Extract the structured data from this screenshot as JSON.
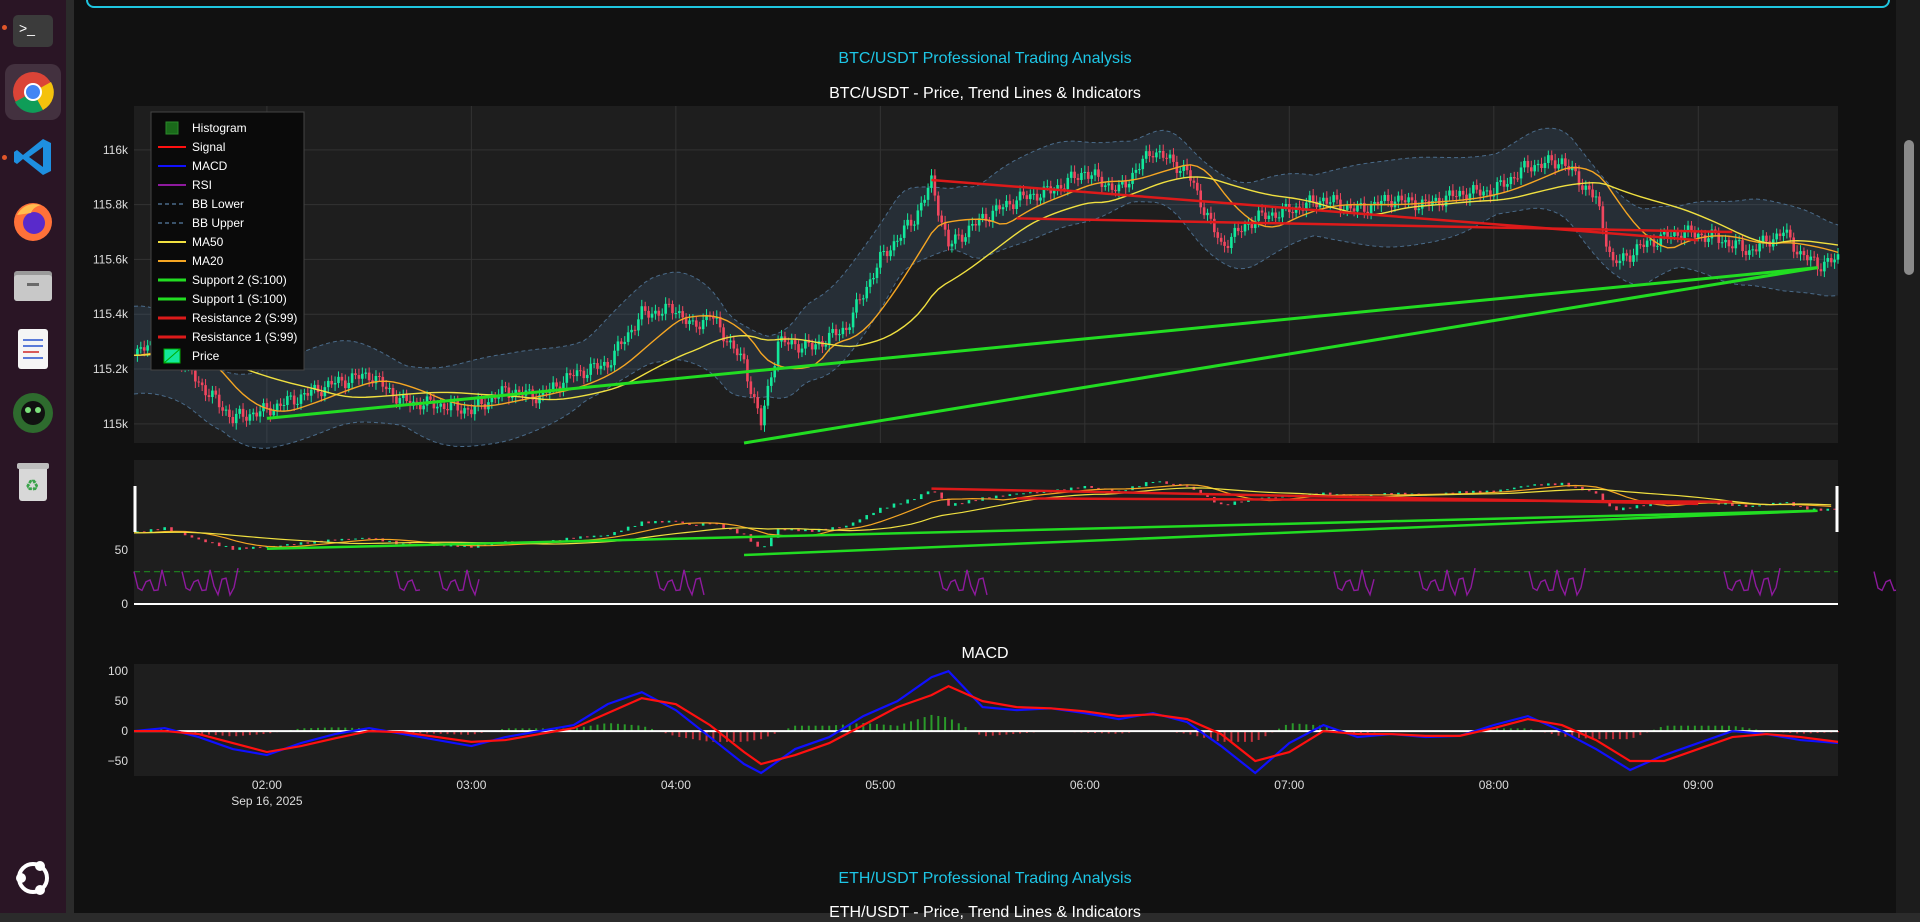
{
  "dock": {
    "items": [
      "terminal-icon",
      "chrome-icon",
      "vscode-icon",
      "firefox-icon",
      "files-icon",
      "text-editor-icon",
      "game-icon",
      "trash-icon",
      "apps-grid-icon"
    ]
  },
  "page": {
    "btc_section_title": "BTC/USDT Professional Trading Analysis",
    "btc_chart_title": "BTC/USDT - Price, Trend Lines & Indicators",
    "macd_title": "MACD",
    "eth_section_title": "ETH/USDT Professional Trading Analysis",
    "eth_chart_title": "ETH/USDT - Price, Trend Lines & Indicators"
  },
  "colors": {
    "accent": "#1ec6e6",
    "up": "#13e89b",
    "down": "#f0465e",
    "support": "#22dd22",
    "resistance": "#dd1a1a",
    "ma20": "#f5a623",
    "ma50": "#f0e040",
    "macd": "#1010ff",
    "signal": "#ff1010",
    "rsi": "#8e1a9e"
  },
  "chart_data": [
    {
      "type": "candlestick",
      "title": "BTC/USDT - Price, Trend Lines & Indicators",
      "y_ticks": [
        "116k",
        "115.8k",
        "115.6k",
        "115.4k",
        "115.2k",
        "115k"
      ],
      "ylim": [
        114.93,
        116.16
      ],
      "x_ticks": [
        "02:00",
        "03:00",
        "04:00",
        "05:00",
        "06:00",
        "07:00",
        "08:00",
        "09:00"
      ],
      "x_date_label": "Sep 16, 2025",
      "xlim": [
        "01:21",
        "09:41"
      ],
      "legend": [
        "Histogram",
        "Signal",
        "MACD",
        "RSI",
        "BB Lower",
        "BB Upper",
        "MA50",
        "MA20",
        "Support 2 (S:100)",
        "Support 1 (S:100)",
        "Resistance 2 (S:99)",
        "Resistance 1 (S:99)",
        "Price"
      ],
      "legend_position": "top-left",
      "price_path": [
        [
          "01:21",
          115.25
        ],
        [
          "01:30",
          115.32
        ],
        [
          "01:40",
          115.15
        ],
        [
          "01:50",
          115.02
        ],
        [
          "02:00",
          115.05
        ],
        [
          "02:10",
          115.1
        ],
        [
          "02:20",
          115.15
        ],
        [
          "02:30",
          115.18
        ],
        [
          "02:40",
          115.08
        ],
        [
          "02:50",
          115.07
        ],
        [
          "03:00",
          115.05
        ],
        [
          "03:10",
          115.12
        ],
        [
          "03:20",
          115.1
        ],
        [
          "03:30",
          115.18
        ],
        [
          "03:40",
          115.22
        ],
        [
          "03:50",
          115.4
        ],
        [
          "04:00",
          115.42
        ],
        [
          "04:05",
          115.35
        ],
        [
          "04:10",
          115.4
        ],
        [
          "04:20",
          115.22
        ],
        [
          "04:25",
          115.0
        ],
        [
          "04:30",
          115.3
        ],
        [
          "04:40",
          115.28
        ],
        [
          "04:50",
          115.35
        ],
        [
          "05:00",
          115.6
        ],
        [
          "05:10",
          115.75
        ],
        [
          "05:15",
          115.88
        ],
        [
          "05:20",
          115.65
        ],
        [
          "05:30",
          115.75
        ],
        [
          "05:40",
          115.82
        ],
        [
          "05:50",
          115.85
        ],
        [
          "06:00",
          115.92
        ],
        [
          "06:10",
          115.85
        ],
        [
          "06:20",
          116.0
        ],
        [
          "06:30",
          115.92
        ],
        [
          "06:40",
          115.65
        ],
        [
          "06:50",
          115.75
        ],
        [
          "07:00",
          115.78
        ],
        [
          "07:10",
          115.82
        ],
        [
          "07:20",
          115.78
        ],
        [
          "07:30",
          115.82
        ],
        [
          "07:40",
          115.8
        ],
        [
          "07:50",
          115.84
        ],
        [
          "08:00",
          115.85
        ],
        [
          "08:10",
          115.94
        ],
        [
          "08:20",
          115.96
        ],
        [
          "08:30",
          115.82
        ],
        [
          "08:35",
          115.58
        ],
        [
          "08:45",
          115.66
        ],
        [
          "08:55",
          115.7
        ],
        [
          "09:05",
          115.68
        ],
        [
          "09:15",
          115.63
        ],
        [
          "09:25",
          115.7
        ],
        [
          "09:30",
          115.62
        ],
        [
          "09:35",
          115.58
        ],
        [
          "09:41",
          115.6
        ]
      ],
      "support_1": [
        [
          "02:00",
          115.02
        ],
        [
          "09:35",
          115.57
        ]
      ],
      "support_2": [
        [
          "04:20",
          114.93
        ],
        [
          "09:35",
          115.57
        ]
      ],
      "resistance_1": [
        [
          "05:15",
          115.89
        ],
        [
          "09:00",
          115.67
        ]
      ],
      "resistance_2": [
        [
          "05:40",
          115.75
        ],
        [
          "09:10",
          115.7
        ]
      ]
    },
    {
      "type": "line",
      "name": "RSI",
      "y_ticks": [
        "50",
        "0"
      ],
      "levels": [
        30,
        70
      ]
    },
    {
      "type": "line",
      "title": "MACD",
      "y_ticks": [
        "100",
        "50",
        "0",
        "−50"
      ],
      "ylim": [
        -75,
        112
      ],
      "series": [
        {
          "name": "MACD",
          "points": [
            [
              "01:21",
              0
            ],
            [
              "01:30",
              5
            ],
            [
              "01:40",
              -10
            ],
            [
              "01:50",
              -30
            ],
            [
              "02:00",
              -40
            ],
            [
              "02:10",
              -20
            ],
            [
              "02:20",
              -5
            ],
            [
              "02:30",
              5
            ],
            [
              "02:40",
              -5
            ],
            [
              "02:50",
              -15
            ],
            [
              "03:00",
              -25
            ],
            [
              "03:10",
              -10
            ],
            [
              "03:20",
              0
            ],
            [
              "03:30",
              10
            ],
            [
              "03:40",
              45
            ],
            [
              "03:50",
              65
            ],
            [
              "04:00",
              35
            ],
            [
              "04:10",
              -10
            ],
            [
              "04:20",
              -55
            ],
            [
              "04:25",
              -70
            ],
            [
              "04:35",
              -30
            ],
            [
              "04:45",
              -10
            ],
            [
              "04:55",
              25
            ],
            [
              "05:05",
              50
            ],
            [
              "05:15",
              90
            ],
            [
              "05:20",
              100
            ],
            [
              "05:30",
              40
            ],
            [
              "05:40",
              35
            ],
            [
              "05:50",
              38
            ],
            [
              "06:00",
              30
            ],
            [
              "06:10",
              20
            ],
            [
              "06:20",
              30
            ],
            [
              "06:30",
              15
            ],
            [
              "06:40",
              -25
            ],
            [
              "06:50",
              -70
            ],
            [
              "07:00",
              -20
            ],
            [
              "07:10",
              10
            ],
            [
              "07:20",
              -10
            ],
            [
              "07:30",
              -5
            ],
            [
              "07:40",
              -10
            ],
            [
              "07:50",
              -8
            ],
            [
              "08:00",
              10
            ],
            [
              "08:10",
              25
            ],
            [
              "08:20",
              0
            ],
            [
              "08:30",
              -30
            ],
            [
              "08:40",
              -65
            ],
            [
              "08:50",
              -40
            ],
            [
              "09:00",
              -20
            ],
            [
              "09:10",
              0
            ],
            [
              "09:20",
              -5
            ],
            [
              "09:30",
              -15
            ],
            [
              "09:41",
              -20
            ]
          ]
        },
        {
          "name": "Signal",
          "points": [
            [
              "01:21",
              0
            ],
            [
              "01:30",
              0
            ],
            [
              "01:40",
              -5
            ],
            [
              "01:50",
              -20
            ],
            [
              "02:00",
              -35
            ],
            [
              "02:10",
              -25
            ],
            [
              "02:20",
              -12
            ],
            [
              "02:30",
              0
            ],
            [
              "02:40",
              -2
            ],
            [
              "02:50",
              -10
            ],
            [
              "03:00",
              -18
            ],
            [
              "03:10",
              -15
            ],
            [
              "03:20",
              -5
            ],
            [
              "03:30",
              5
            ],
            [
              "03:40",
              30
            ],
            [
              "03:50",
              55
            ],
            [
              "04:00",
              45
            ],
            [
              "04:10",
              10
            ],
            [
              "04:20",
              -35
            ],
            [
              "04:25",
              -55
            ],
            [
              "04:35",
              -40
            ],
            [
              "04:45",
              -20
            ],
            [
              "04:55",
              10
            ],
            [
              "05:05",
              40
            ],
            [
              "05:15",
              60
            ],
            [
              "05:20",
              75
            ],
            [
              "05:30",
              50
            ],
            [
              "05:40",
              40
            ],
            [
              "05:50",
              38
            ],
            [
              "06:00",
              33
            ],
            [
              "06:10",
              25
            ],
            [
              "06:20",
              28
            ],
            [
              "06:30",
              20
            ],
            [
              "06:40",
              -5
            ],
            [
              "06:50",
              -50
            ],
            [
              "07:00",
              -35
            ],
            [
              "07:10",
              0
            ],
            [
              "07:20",
              -5
            ],
            [
              "07:30",
              -5
            ],
            [
              "07:40",
              -8
            ],
            [
              "07:50",
              -8
            ],
            [
              "08:00",
              5
            ],
            [
              "08:10",
              20
            ],
            [
              "08:20",
              10
            ],
            [
              "08:30",
              -15
            ],
            [
              "08:40",
              -50
            ],
            [
              "08:50",
              -50
            ],
            [
              "09:00",
              -30
            ],
            [
              "09:10",
              -10
            ],
            [
              "09:20",
              -5
            ],
            [
              "09:30",
              -10
            ],
            [
              "09:41",
              -18
            ]
          ]
        }
      ]
    }
  ]
}
